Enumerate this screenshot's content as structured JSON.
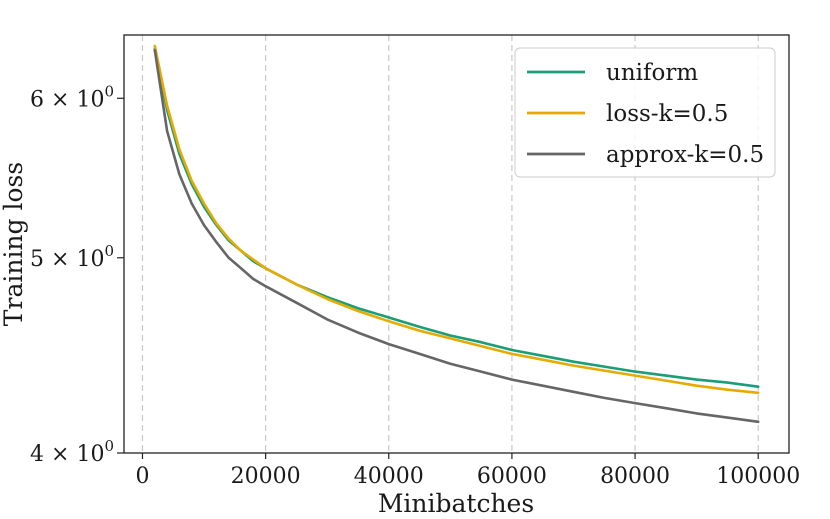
{
  "chart_data": {
    "type": "line",
    "xlabel": "Minibatches",
    "ylabel": "Training loss",
    "xlim": [
      -3000,
      105000
    ],
    "ylim": [
      4.0,
      6.45
    ],
    "yscale": "log",
    "grid": "x-dashed",
    "legend": "top-right",
    "x_ticks": [
      0,
      20000,
      40000,
      60000,
      80000,
      100000
    ],
    "x_tick_labels": [
      "0",
      "20000",
      "40000",
      "60000",
      "80000",
      "100000"
    ],
    "y_ticks": [
      {
        "value": 6,
        "base": "6 × 10",
        "exp": "0"
      },
      {
        "value": 5,
        "base": "5 × 10",
        "exp": "0"
      },
      {
        "value": 4,
        "base": "4 × 10",
        "exp": "0"
      }
    ],
    "series": [
      {
        "name": "uniform",
        "color": "#1b9e77",
        "x": [
          2000,
          4000,
          6000,
          8000,
          10000,
          12000,
          14000,
          16000,
          18000,
          20000,
          25000,
          30000,
          35000,
          40000,
          45000,
          50000,
          55000,
          60000,
          65000,
          70000,
          75000,
          80000,
          85000,
          90000,
          95000,
          100000
        ],
        "y": [
          6.35,
          5.92,
          5.63,
          5.44,
          5.3,
          5.19,
          5.1,
          5.04,
          4.98,
          4.94,
          4.85,
          4.78,
          4.72,
          4.67,
          4.62,
          4.575,
          4.54,
          4.5,
          4.47,
          4.44,
          4.415,
          4.39,
          4.37,
          4.35,
          4.335,
          4.315
        ]
      },
      {
        "name": "loss-k=0.5",
        "color": "#e6ab02",
        "x": [
          2000,
          4000,
          6000,
          8000,
          10000,
          12000,
          14000,
          16000,
          18000,
          20000,
          25000,
          30000,
          35000,
          40000,
          45000,
          50000,
          55000,
          60000,
          65000,
          70000,
          75000,
          80000,
          85000,
          90000,
          95000,
          100000
        ],
        "y": [
          6.37,
          5.95,
          5.66,
          5.46,
          5.32,
          5.2,
          5.11,
          5.04,
          4.99,
          4.94,
          4.85,
          4.77,
          4.705,
          4.65,
          4.6,
          4.56,
          4.52,
          4.48,
          4.45,
          4.42,
          4.395,
          4.37,
          4.345,
          4.32,
          4.3,
          4.285
        ]
      },
      {
        "name": "approx-k=0.5",
        "color": "#666666",
        "x": [
          2000,
          4000,
          6000,
          8000,
          10000,
          12000,
          14000,
          16000,
          18000,
          20000,
          25000,
          30000,
          35000,
          40000,
          45000,
          50000,
          55000,
          60000,
          65000,
          70000,
          75000,
          80000,
          85000,
          90000,
          95000,
          100000
        ],
        "y": [
          6.34,
          5.78,
          5.5,
          5.32,
          5.19,
          5.09,
          5.0,
          4.94,
          4.88,
          4.84,
          4.75,
          4.66,
          4.59,
          4.53,
          4.48,
          4.43,
          4.39,
          4.35,
          4.32,
          4.29,
          4.26,
          4.235,
          4.21,
          4.185,
          4.165,
          4.145
        ]
      }
    ]
  }
}
